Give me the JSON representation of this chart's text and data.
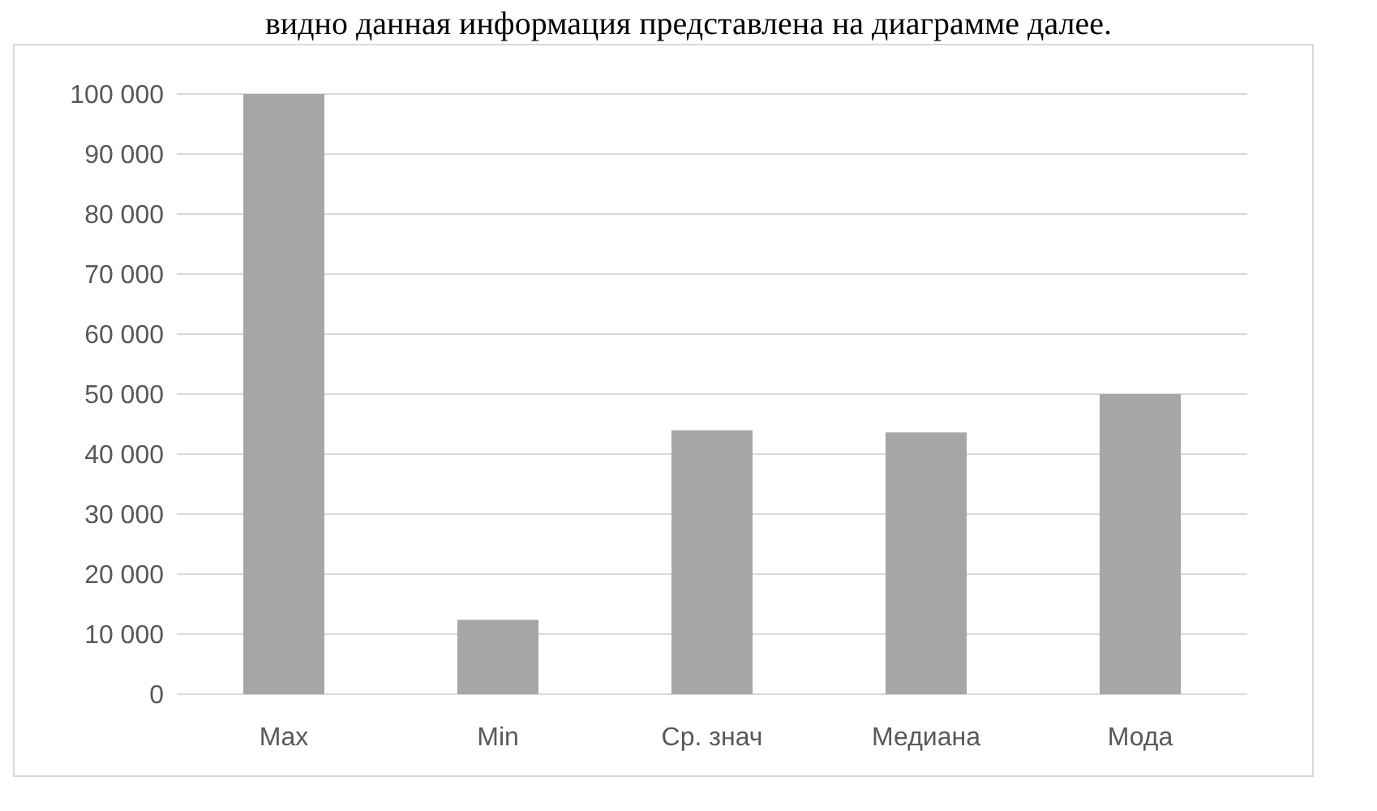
{
  "chart_data": {
    "type": "bar",
    "annotations": [
      "видно данная информация представлена на диаграмме далее."
    ],
    "categories": [
      "Max",
      "Min",
      "Ср. знач",
      "Медиана",
      "Мода"
    ],
    "values": [
      100000,
      12400,
      44000,
      43600,
      50000
    ],
    "color": "#a6a6a6",
    "ylim": [
      0,
      100000
    ],
    "yticks": [
      {
        "value": 0,
        "label": "0"
      },
      {
        "value": 10000,
        "label": "10 000"
      },
      {
        "value": 20000,
        "label": "20 000"
      },
      {
        "value": 30000,
        "label": "30 000"
      },
      {
        "value": 40000,
        "label": "40 000"
      },
      {
        "value": 50000,
        "label": "50 000"
      },
      {
        "value": 60000,
        "label": "60 000"
      },
      {
        "value": 70000,
        "label": "70 000"
      },
      {
        "value": 80000,
        "label": "80 000"
      },
      {
        "value": 90000,
        "label": "90 000"
      },
      {
        "value": 100000,
        "label": "100 000"
      }
    ],
    "grid": "y"
  }
}
